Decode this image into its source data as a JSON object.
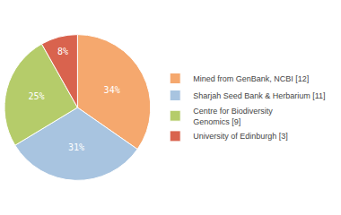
{
  "chart_data": {
    "type": "pie",
    "categories": [
      "Mined from GenBank, NCBI [12]",
      "Sharjah Seed Bank & Herbarium [11]",
      "Centre for Biodiversity\nGenomics [9]",
      "University of Edinburgh [3]"
    ],
    "values": [
      34,
      31,
      25,
      8
    ],
    "value_labels": [
      "34%",
      "31%",
      "25%",
      "8%"
    ],
    "colors": [
      "#F5A86E",
      "#A8C4E0",
      "#B5CC6A",
      "#D9634E"
    ],
    "data_labels": true,
    "legend": "right"
  }
}
